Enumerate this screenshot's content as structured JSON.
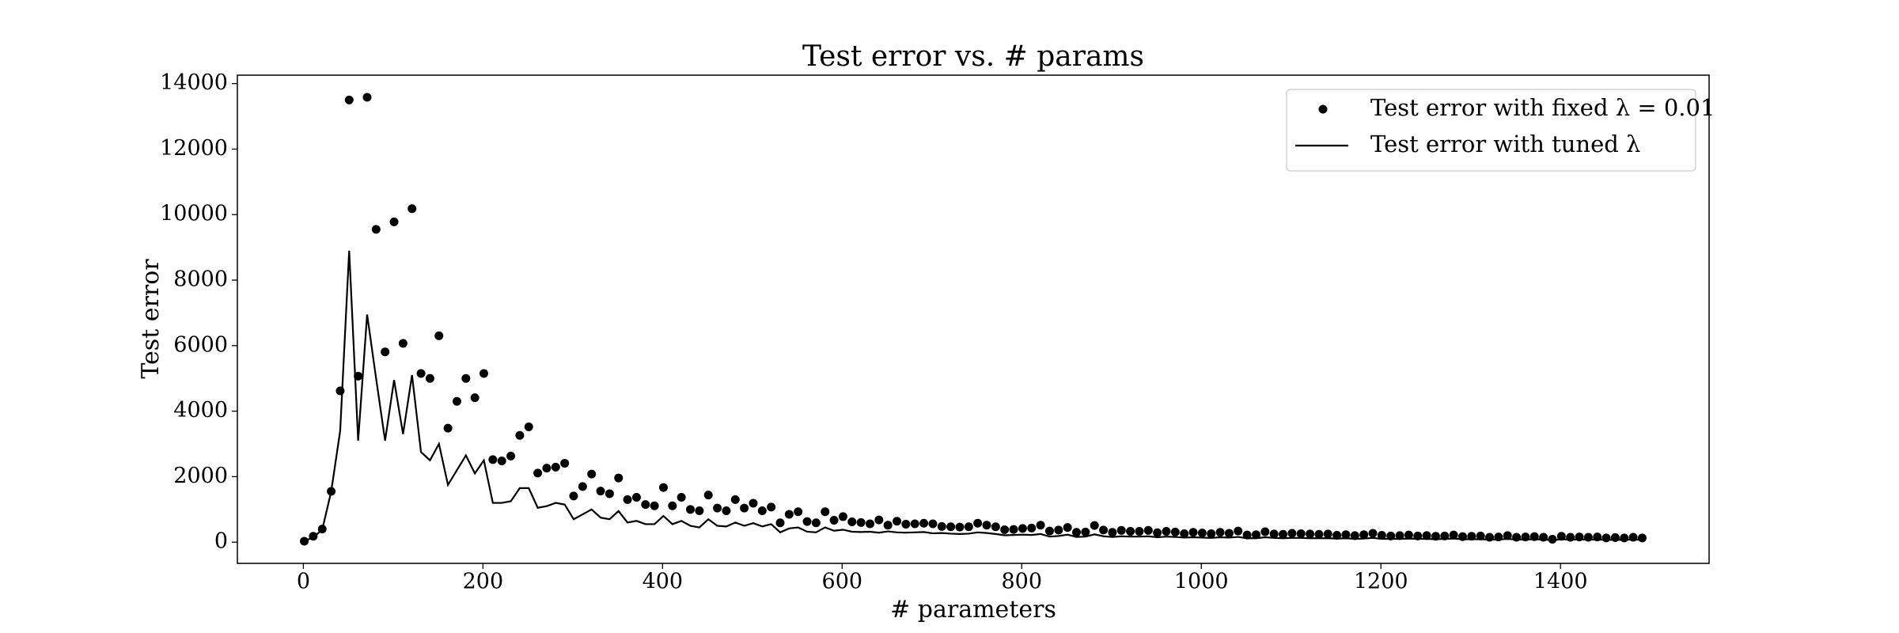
{
  "chart_data": {
    "type": "scatter",
    "title": "Test error vs. # params",
    "x_label": "# parameters",
    "y_label": "Test error",
    "x": [
      1,
      11,
      21,
      31,
      41,
      51,
      61,
      71,
      81,
      91,
      101,
      111,
      121,
      131,
      141,
      151,
      161,
      171,
      181,
      191,
      201,
      211,
      221,
      231,
      241,
      251,
      261,
      271,
      281,
      291,
      301,
      311,
      321,
      331,
      341,
      351,
      361,
      371,
      381,
      391,
      401,
      411,
      421,
      431,
      441,
      451,
      461,
      471,
      481,
      491,
      501,
      511,
      521,
      531,
      541,
      551,
      561,
      571,
      581,
      591,
      601,
      611,
      621,
      631,
      641,
      651,
      661,
      671,
      681,
      691,
      701,
      711,
      721,
      731,
      741,
      751,
      761,
      771,
      781,
      791,
      801,
      811,
      821,
      831,
      841,
      851,
      861,
      871,
      881,
      891,
      901,
      911,
      921,
      931,
      941,
      951,
      961,
      971,
      981,
      991,
      1001,
      1011,
      1021,
      1031,
      1041,
      1051,
      1061,
      1071,
      1081,
      1091,
      1101,
      1111,
      1121,
      1131,
      1141,
      1151,
      1161,
      1171,
      1181,
      1191,
      1201,
      1211,
      1221,
      1231,
      1241,
      1251,
      1261,
      1271,
      1281,
      1291,
      1301,
      1311,
      1321,
      1331,
      1341,
      1351,
      1361,
      1371,
      1381,
      1391,
      1401,
      1411,
      1421,
      1431,
      1441,
      1451,
      1461,
      1471,
      1481,
      1491
    ],
    "series": [
      {
        "name": "Test error with fixed λ = 0.01",
        "type": "scatter",
        "color": "#000000",
        "values": [
          30,
          180,
          400,
          1550,
          4620,
          13500,
          5070,
          13580,
          9550,
          5810,
          9780,
          6070,
          10180,
          5150,
          5000,
          6300,
          3480,
          4300,
          5000,
          4410,
          5150,
          2520,
          2480,
          2630,
          3260,
          3520,
          2110,
          2260,
          2290,
          2410,
          1410,
          1700,
          2080,
          1560,
          1480,
          1960,
          1300,
          1370,
          1150,
          1110,
          1670,
          1110,
          1370,
          1000,
          960,
          1440,
          1040,
          960,
          1300,
          1040,
          1190,
          960,
          1070,
          590,
          850,
          930,
          630,
          590,
          930,
          670,
          780,
          620,
          600,
          560,
          680,
          520,
          640,
          550,
          560,
          580,
          560,
          480,
          470,
          460,
          470,
          580,
          520,
          470,
          380,
          390,
          420,
          430,
          520,
          340,
          370,
          450,
          300,
          310,
          510,
          370,
          300,
          360,
          330,
          330,
          360,
          290,
          330,
          310,
          260,
          300,
          280,
          260,
          300,
          270,
          340,
          220,
          230,
          320,
          250,
          240,
          270,
          260,
          250,
          240,
          250,
          210,
          230,
          200,
          230,
          270,
          210,
          190,
          200,
          220,
          190,
          200,
          180,
          190,
          220,
          170,
          180,
          190,
          150,
          160,
          200,
          150,
          160,
          170,
          150,
          90,
          180,
          150,
          160,
          150,
          160,
          130,
          140,
          130,
          150,
          130
        ]
      },
      {
        "name": "Test error with tuned λ",
        "type": "line",
        "color": "#000000",
        "values": [
          30,
          150,
          380,
          1550,
          3400,
          8900,
          3100,
          6950,
          5000,
          3100,
          4950,
          3300,
          5100,
          2750,
          2500,
          3000,
          1750,
          2200,
          2650,
          2100,
          2500,
          1200,
          1200,
          1250,
          1650,
          1650,
          1050,
          1100,
          1200,
          1150,
          700,
          850,
          1000,
          750,
          700,
          950,
          600,
          650,
          550,
          550,
          800,
          550,
          650,
          500,
          450,
          700,
          500,
          480,
          600,
          500,
          580,
          480,
          550,
          300,
          420,
          450,
          320,
          300,
          450,
          350,
          380,
          320,
          310,
          320,
          290,
          330,
          300,
          290,
          300,
          310,
          270,
          280,
          260,
          250,
          260,
          300,
          280,
          250,
          210,
          220,
          230,
          220,
          250,
          170,
          190,
          230,
          160,
          170,
          240,
          180,
          160,
          180,
          170,
          170,
          180,
          150,
          170,
          160,
          140,
          150,
          140,
          130,
          150,
          140,
          160,
          120,
          120,
          150,
          130,
          120,
          130,
          130,
          120,
          120,
          120,
          110,
          120,
          100,
          110,
          130,
          100,
          100,
          100,
          110,
          100,
          100,
          90,
          100,
          110,
          90,
          90,
          90,
          80,
          80,
          100,
          80,
          80,
          90,
          80,
          60,
          90,
          80,
          80,
          80,
          80,
          70,
          70,
          70,
          80,
          70
        ]
      }
    ],
    "xlim": [
      -73.5,
      1565.5
    ],
    "ylim": [
      -647,
      14257
    ],
    "xticks": [
      0,
      200,
      400,
      600,
      800,
      1000,
      1200,
      1400
    ],
    "yticks": [
      0,
      2000,
      4000,
      6000,
      8000,
      10000,
      12000,
      14000
    ],
    "grid": false,
    "legend": "upper right"
  }
}
